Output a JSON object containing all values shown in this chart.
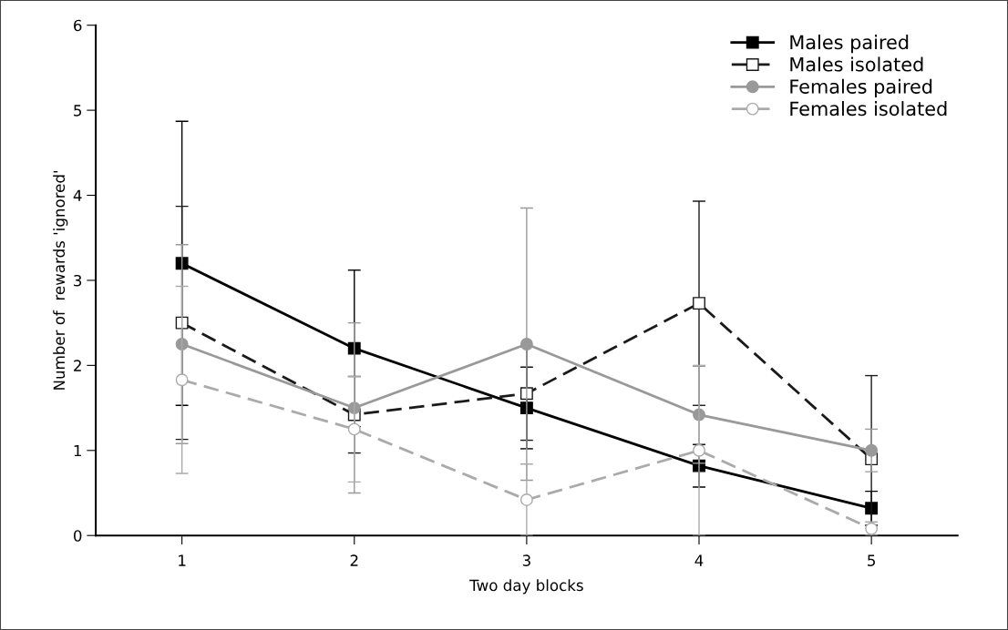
{
  "chart_data": {
    "type": "line",
    "xlabel": "Two day blocks",
    "ylabel": "Number of  rewards 'ignored'",
    "categories": [
      "1",
      "2",
      "3",
      "4",
      "5"
    ],
    "ylim": [
      0,
      6
    ],
    "yticks": [
      0,
      1,
      2,
      3,
      4,
      5,
      6
    ],
    "grid": false,
    "legend": "top right",
    "series": [
      {
        "name": "Males paired",
        "color": "#000000",
        "marker": "square",
        "colors": [
          "#000000",
          "#000000",
          "#000000",
          "#000000",
          "#000000"
        ],
        "line_style": "solid",
        "values": [
          3.2,
          2.2,
          1.5,
          0.82,
          0.32
        ],
        "errors": [
          1.67,
          0.92,
          0.48,
          0.25,
          0.2
        ]
      },
      {
        "name": "Males isolated",
        "color": "#1a1a1a",
        "marker": "square",
        "colors": [
          "#ffffff",
          "#ffffff",
          "#ffffff",
          "#ffffff",
          "#ffffff"
        ],
        "line_style": "dashed",
        "values": [
          2.5,
          1.42,
          1.67,
          2.73,
          0.9
        ],
        "errors": [
          1.37,
          0.45,
          0.55,
          1.2,
          0.98
        ]
      },
      {
        "name": "Females paired",
        "color": "#999999",
        "marker": "circle",
        "colors": [
          "#999999",
          "#999999",
          "#999999",
          "#999999",
          "#999999"
        ],
        "line_style": "solid",
        "values": [
          2.25,
          1.5,
          2.25,
          1.42,
          1.0
        ],
        "errors": [
          1.17,
          1.0,
          1.6,
          0.57,
          0.25
        ]
      },
      {
        "name": "Females isolated",
        "color": "#aaaaaa",
        "marker": "circle",
        "colors": [
          "#ffffff",
          "#ffffff",
          "#ffffff",
          "#ffffff",
          "#ffffff"
        ],
        "line_style": "dashed",
        "values": [
          1.83,
          1.25,
          0.42,
          1.0,
          0.08
        ],
        "errors": [
          1.1,
          0.62,
          0.42,
          1.0,
          0.08
        ]
      }
    ]
  }
}
